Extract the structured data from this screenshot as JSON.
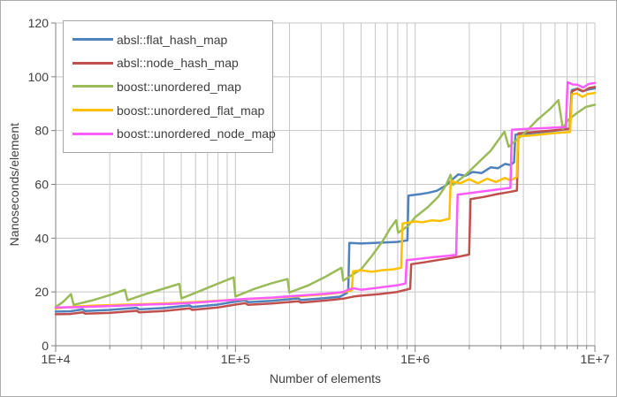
{
  "frame": {
    "background": "#FFFFFF",
    "border_color": "#ABABAB"
  },
  "chart_data": {
    "type": "line",
    "title": "",
    "xlabel": "Number of elements",
    "ylabel": "Nanoseconds/element",
    "x_scale": "log10",
    "xlim": [
      10000,
      10000000
    ],
    "ylim": [
      0,
      120
    ],
    "y_ticks": [
      0,
      20,
      40,
      60,
      80,
      100,
      120
    ],
    "x_ticks": [
      "1E+4",
      "1E+5",
      "1E+6",
      "1E+7"
    ],
    "grid": true,
    "grid_color": "#C6C6C6",
    "axis_color": "#7F7F7F",
    "text_color": "#404040",
    "legend_position": "top-left",
    "series": [
      {
        "name": "absl::flat_hash_map",
        "color": "#4F81BD",
        "points": [
          [
            4.0,
            12.7
          ],
          [
            4.08,
            12.8
          ],
          [
            4.15,
            13.5
          ],
          [
            4.165,
            12.9
          ],
          [
            4.3,
            13.3
          ],
          [
            4.45,
            14.1
          ],
          [
            4.465,
            13.5
          ],
          [
            4.6,
            14.0
          ],
          [
            4.745,
            15.0
          ],
          [
            4.76,
            14.4
          ],
          [
            4.9,
            15.3
          ],
          [
            5.0,
            16.4
          ],
          [
            5.055,
            16.9
          ],
          [
            5.07,
            16.2
          ],
          [
            5.2,
            16.7
          ],
          [
            5.35,
            17.6
          ],
          [
            5.365,
            17.0
          ],
          [
            5.48,
            17.6
          ],
          [
            5.58,
            18.2
          ],
          [
            5.62,
            19.6
          ],
          [
            5.628,
            21.0
          ],
          [
            5.634,
            38.2
          ],
          [
            5.7,
            38.0
          ],
          [
            5.8,
            38.3
          ],
          [
            5.9,
            38.6
          ],
          [
            5.957,
            39.2
          ],
          [
            5.963,
            55.8
          ],
          [
            6.02,
            56.3
          ],
          [
            6.07,
            56.8
          ],
          [
            6.12,
            57.6
          ],
          [
            6.17,
            59.5
          ],
          [
            6.21,
            62.0
          ],
          [
            6.24,
            63.7
          ],
          [
            6.28,
            63.2
          ],
          [
            6.32,
            64.6
          ],
          [
            6.37,
            64.2
          ],
          [
            6.42,
            66.3
          ],
          [
            6.46,
            66.0
          ],
          [
            6.5,
            67.6
          ],
          [
            6.53,
            67.2
          ],
          [
            6.55,
            68.2
          ],
          [
            6.558,
            78.5
          ],
          [
            6.62,
            78.8
          ],
          [
            6.7,
            79.4
          ],
          [
            6.78,
            80.0
          ],
          [
            6.83,
            80.4
          ],
          [
            6.862,
            80.8
          ],
          [
            6.872,
            95.0
          ],
          [
            6.9,
            95.5
          ],
          [
            6.93,
            94.6
          ],
          [
            6.96,
            95.2
          ],
          [
            7.0,
            95.7
          ]
        ]
      },
      {
        "name": "absl::node_hash_map",
        "color": "#C0504D",
        "points": [
          [
            4.0,
            11.7
          ],
          [
            4.08,
            11.8
          ],
          [
            4.15,
            12.4
          ],
          [
            4.165,
            11.9
          ],
          [
            4.3,
            12.2
          ],
          [
            4.45,
            13.0
          ],
          [
            4.465,
            12.4
          ],
          [
            4.6,
            12.9
          ],
          [
            4.745,
            13.9
          ],
          [
            4.76,
            13.3
          ],
          [
            4.9,
            14.2
          ],
          [
            5.0,
            15.3
          ],
          [
            5.055,
            15.8
          ],
          [
            5.07,
            15.2
          ],
          [
            5.2,
            15.7
          ],
          [
            5.35,
            16.5
          ],
          [
            5.365,
            16.0
          ],
          [
            5.5,
            16.8
          ],
          [
            5.6,
            17.5
          ],
          [
            5.66,
            18.3
          ],
          [
            5.7,
            18.6
          ],
          [
            5.8,
            19.2
          ],
          [
            5.9,
            20.0
          ],
          [
            5.972,
            21.2
          ],
          [
            5.978,
            30.3
          ],
          [
            6.05,
            31.0
          ],
          [
            6.12,
            31.8
          ],
          [
            6.2,
            32.6
          ],
          [
            6.25,
            33.2
          ],
          [
            6.3,
            33.9
          ],
          [
            6.308,
            54.5
          ],
          [
            6.38,
            55.3
          ],
          [
            6.46,
            56.4
          ],
          [
            6.52,
            57.1
          ],
          [
            6.566,
            57.7
          ],
          [
            6.574,
            79.0
          ],
          [
            6.65,
            79.4
          ],
          [
            6.75,
            80.0
          ],
          [
            6.86,
            80.6
          ],
          [
            6.87,
            94.5
          ],
          [
            6.905,
            95.6
          ],
          [
            6.935,
            94.6
          ],
          [
            6.97,
            95.9
          ],
          [
            7.0,
            96.2
          ]
        ]
      },
      {
        "name": "boost::unordered_map",
        "color": "#9BBB59",
        "points": [
          [
            4.0,
            14.4
          ],
          [
            4.04,
            16.2
          ],
          [
            4.085,
            19.2
          ],
          [
            4.1,
            15.2
          ],
          [
            4.2,
            16.8
          ],
          [
            4.3,
            18.8
          ],
          [
            4.385,
            20.8
          ],
          [
            4.4,
            16.9
          ],
          [
            4.5,
            19.2
          ],
          [
            4.6,
            21.2
          ],
          [
            4.688,
            23.0
          ],
          [
            4.7,
            17.6
          ],
          [
            4.8,
            20.3
          ],
          [
            4.9,
            23.0
          ],
          [
            4.99,
            25.4
          ],
          [
            5.0,
            18.3
          ],
          [
            5.1,
            21.0
          ],
          [
            5.2,
            23.2
          ],
          [
            5.29,
            24.8
          ],
          [
            5.3,
            19.8
          ],
          [
            5.4,
            22.3
          ],
          [
            5.5,
            25.6
          ],
          [
            5.59,
            29.0
          ],
          [
            5.6,
            24.2
          ],
          [
            5.7,
            28.5
          ],
          [
            5.76,
            33.5
          ],
          [
            5.82,
            39.0
          ],
          [
            5.86,
            43.5
          ],
          [
            5.894,
            46.7
          ],
          [
            5.905,
            42.0
          ],
          [
            5.96,
            44.5
          ],
          [
            6.0,
            47.8
          ],
          [
            6.07,
            51.5
          ],
          [
            6.13,
            55.5
          ],
          [
            6.17,
            59.5
          ],
          [
            6.197,
            63.6
          ],
          [
            6.21,
            59.8
          ],
          [
            6.28,
            63.5
          ],
          [
            6.35,
            68.0
          ],
          [
            6.42,
            72.5
          ],
          [
            6.497,
            79.6
          ],
          [
            6.52,
            74.0
          ],
          [
            6.6,
            78.5
          ],
          [
            6.68,
            84.0
          ],
          [
            6.75,
            88.0
          ],
          [
            6.797,
            91.3
          ],
          [
            6.822,
            80.6
          ],
          [
            6.85,
            83.9
          ],
          [
            6.9,
            86.5
          ],
          [
            6.95,
            88.8
          ],
          [
            7.0,
            89.6
          ]
        ]
      },
      {
        "name": "boost::unordered_flat_map",
        "color": "#FFC000",
        "points": [
          [
            4.0,
            13.9
          ],
          [
            4.1,
            14.5
          ],
          [
            4.2,
            14.9
          ],
          [
            4.35,
            15.2
          ],
          [
            4.5,
            15.5
          ],
          [
            4.65,
            15.8
          ],
          [
            4.8,
            16.3
          ],
          [
            4.95,
            16.9
          ],
          [
            5.05,
            17.3
          ],
          [
            5.2,
            17.8
          ],
          [
            5.35,
            18.4
          ],
          [
            5.5,
            19.1
          ],
          [
            5.6,
            19.9
          ],
          [
            5.648,
            20.6
          ],
          [
            5.655,
            27.7
          ],
          [
            5.7,
            28.0
          ],
          [
            5.76,
            27.5
          ],
          [
            5.82,
            28.1
          ],
          [
            5.88,
            28.4
          ],
          [
            5.922,
            29.0
          ],
          [
            5.93,
            45.4
          ],
          [
            6.0,
            46.2
          ],
          [
            6.04,
            45.9
          ],
          [
            6.09,
            46.6
          ],
          [
            6.14,
            46.4
          ],
          [
            6.19,
            47.2
          ],
          [
            6.198,
            61.2
          ],
          [
            6.25,
            60.4
          ],
          [
            6.3,
            61.9
          ],
          [
            6.35,
            60.4
          ],
          [
            6.4,
            62.1
          ],
          [
            6.45,
            60.9
          ],
          [
            6.5,
            62.4
          ],
          [
            6.53,
            61.4
          ],
          [
            6.565,
            62.7
          ],
          [
            6.573,
            77.9
          ],
          [
            6.65,
            78.2
          ],
          [
            6.75,
            78.9
          ],
          [
            6.862,
            79.5
          ],
          [
            6.872,
            93.5
          ],
          [
            6.9,
            93.8
          ],
          [
            6.93,
            92.5
          ],
          [
            6.96,
            93.6
          ],
          [
            7.0,
            94.0
          ]
        ]
      },
      {
        "name": "boost::unordered_node_map",
        "color": "#FF5CFF",
        "points": [
          [
            4.0,
            14.2
          ],
          [
            4.1,
            14.3
          ],
          [
            4.2,
            14.5
          ],
          [
            4.35,
            14.9
          ],
          [
            4.5,
            15.3
          ],
          [
            4.65,
            15.6
          ],
          [
            4.8,
            16.1
          ],
          [
            4.95,
            16.9
          ],
          [
            5.05,
            17.4
          ],
          [
            5.2,
            17.9
          ],
          [
            5.35,
            18.6
          ],
          [
            5.5,
            19.3
          ],
          [
            5.6,
            20.0
          ],
          [
            5.63,
            20.9
          ],
          [
            5.66,
            21.3
          ],
          [
            5.7,
            20.8
          ],
          [
            5.8,
            21.6
          ],
          [
            5.9,
            22.5
          ],
          [
            5.946,
            23.1
          ],
          [
            5.953,
            31.8
          ],
          [
            6.02,
            32.3
          ],
          [
            6.1,
            32.9
          ],
          [
            6.18,
            33.4
          ],
          [
            6.228,
            33.8
          ],
          [
            6.236,
            56.2
          ],
          [
            6.3,
            56.7
          ],
          [
            6.38,
            57.4
          ],
          [
            6.46,
            58.1
          ],
          [
            6.53,
            58.7
          ],
          [
            6.538,
            80.3
          ],
          [
            6.62,
            80.6
          ],
          [
            6.72,
            80.9
          ],
          [
            6.838,
            81.3
          ],
          [
            6.848,
            98.0
          ],
          [
            6.875,
            97.2
          ],
          [
            6.905,
            97.0
          ],
          [
            6.935,
            96.0
          ],
          [
            6.965,
            97.3
          ],
          [
            7.0,
            97.7
          ]
        ]
      }
    ]
  }
}
